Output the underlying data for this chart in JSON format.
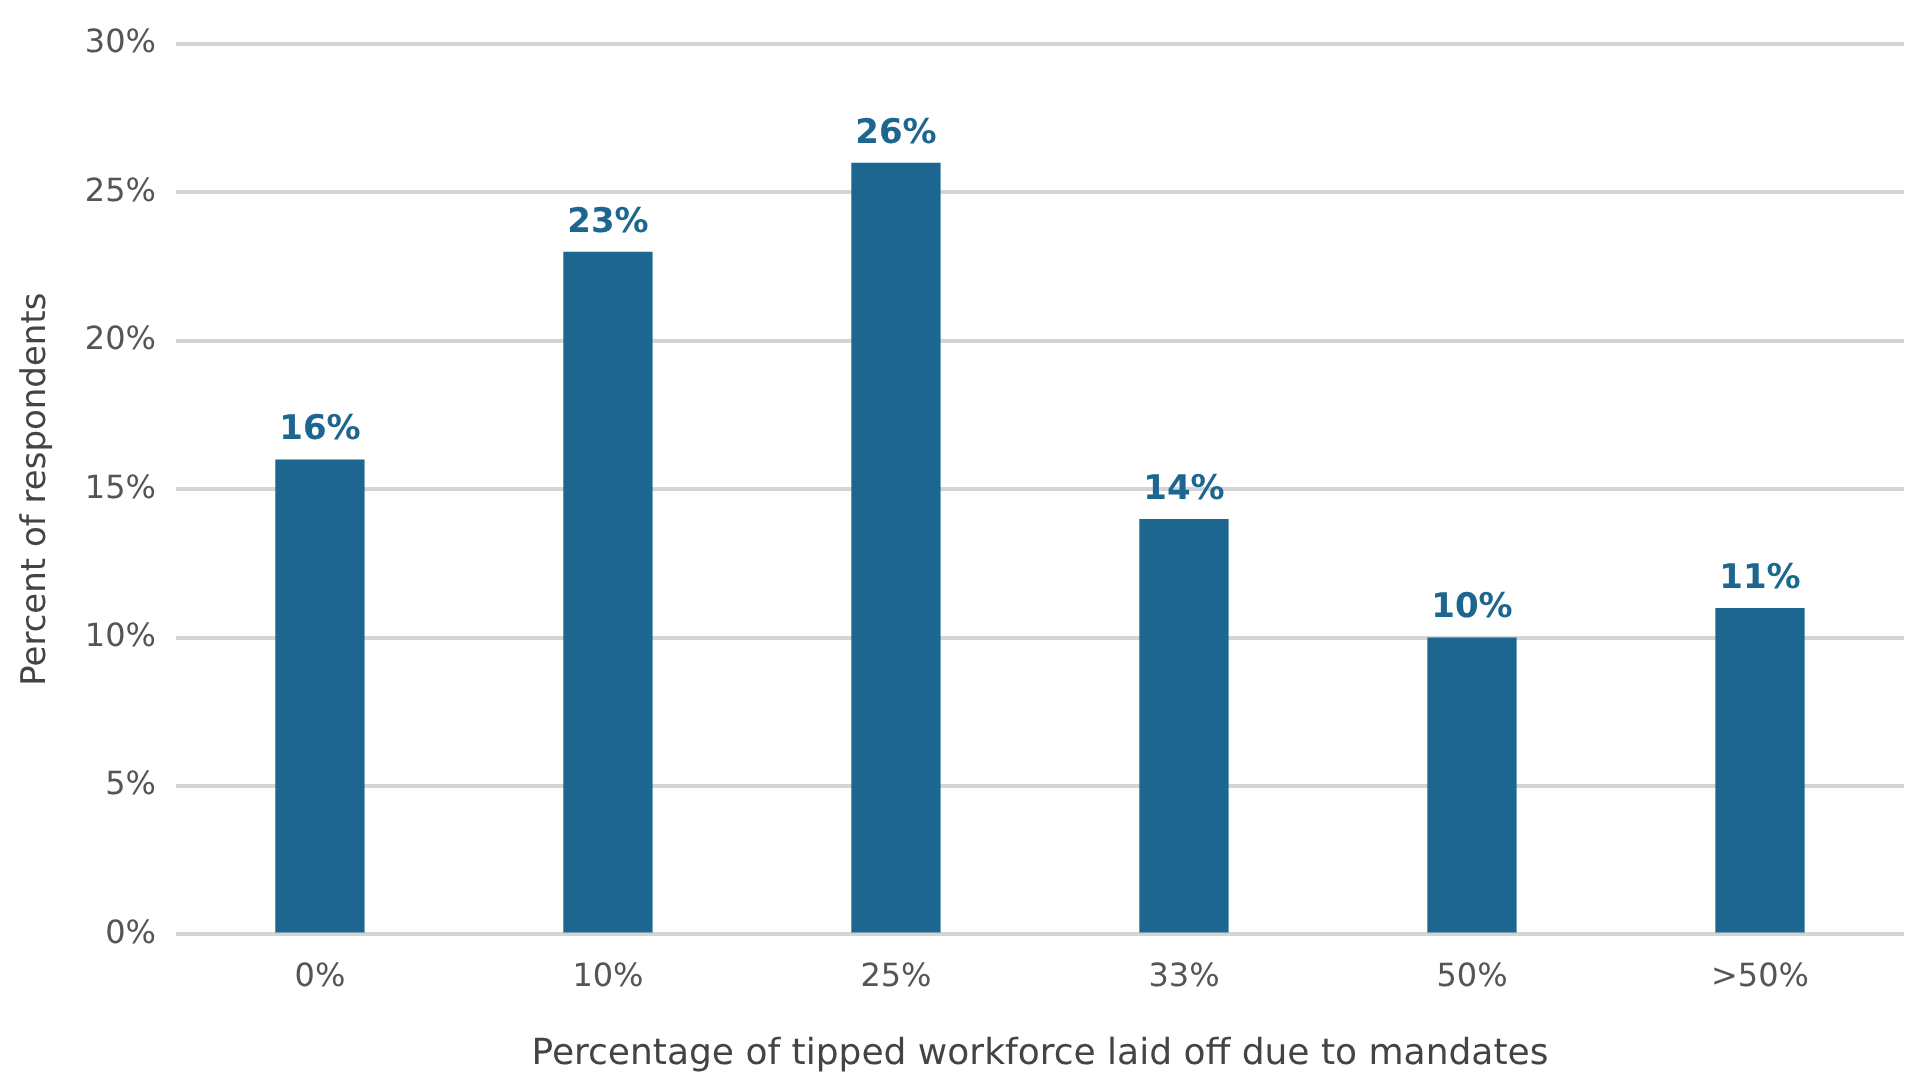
{
  "chart_data": {
    "type": "bar",
    "xlabel": "Percentage of tipped workforce laid off due to mandates",
    "ylabel": "Percent of respondents",
    "categories": [
      "0%",
      "10%",
      "25%",
      "33%",
      "50%",
      ">50%"
    ],
    "values": [
      16,
      23,
      26,
      14,
      10,
      11
    ],
    "color": "#1c6690",
    "value_labels": [
      "16%",
      "23%",
      "26%",
      "14%",
      "10%",
      "11%"
    ],
    "ylim": [
      0,
      30
    ],
    "yticks": [
      {
        "value": 0,
        "label": "0%"
      },
      {
        "value": 5,
        "label": "5%"
      },
      {
        "value": 10,
        "label": "10%"
      },
      {
        "value": 15,
        "label": "15%"
      },
      {
        "value": 20,
        "label": "20%"
      },
      {
        "value": 25,
        "label": "25%"
      },
      {
        "value": 30,
        "label": "30%"
      }
    ],
    "grid": "y"
  }
}
